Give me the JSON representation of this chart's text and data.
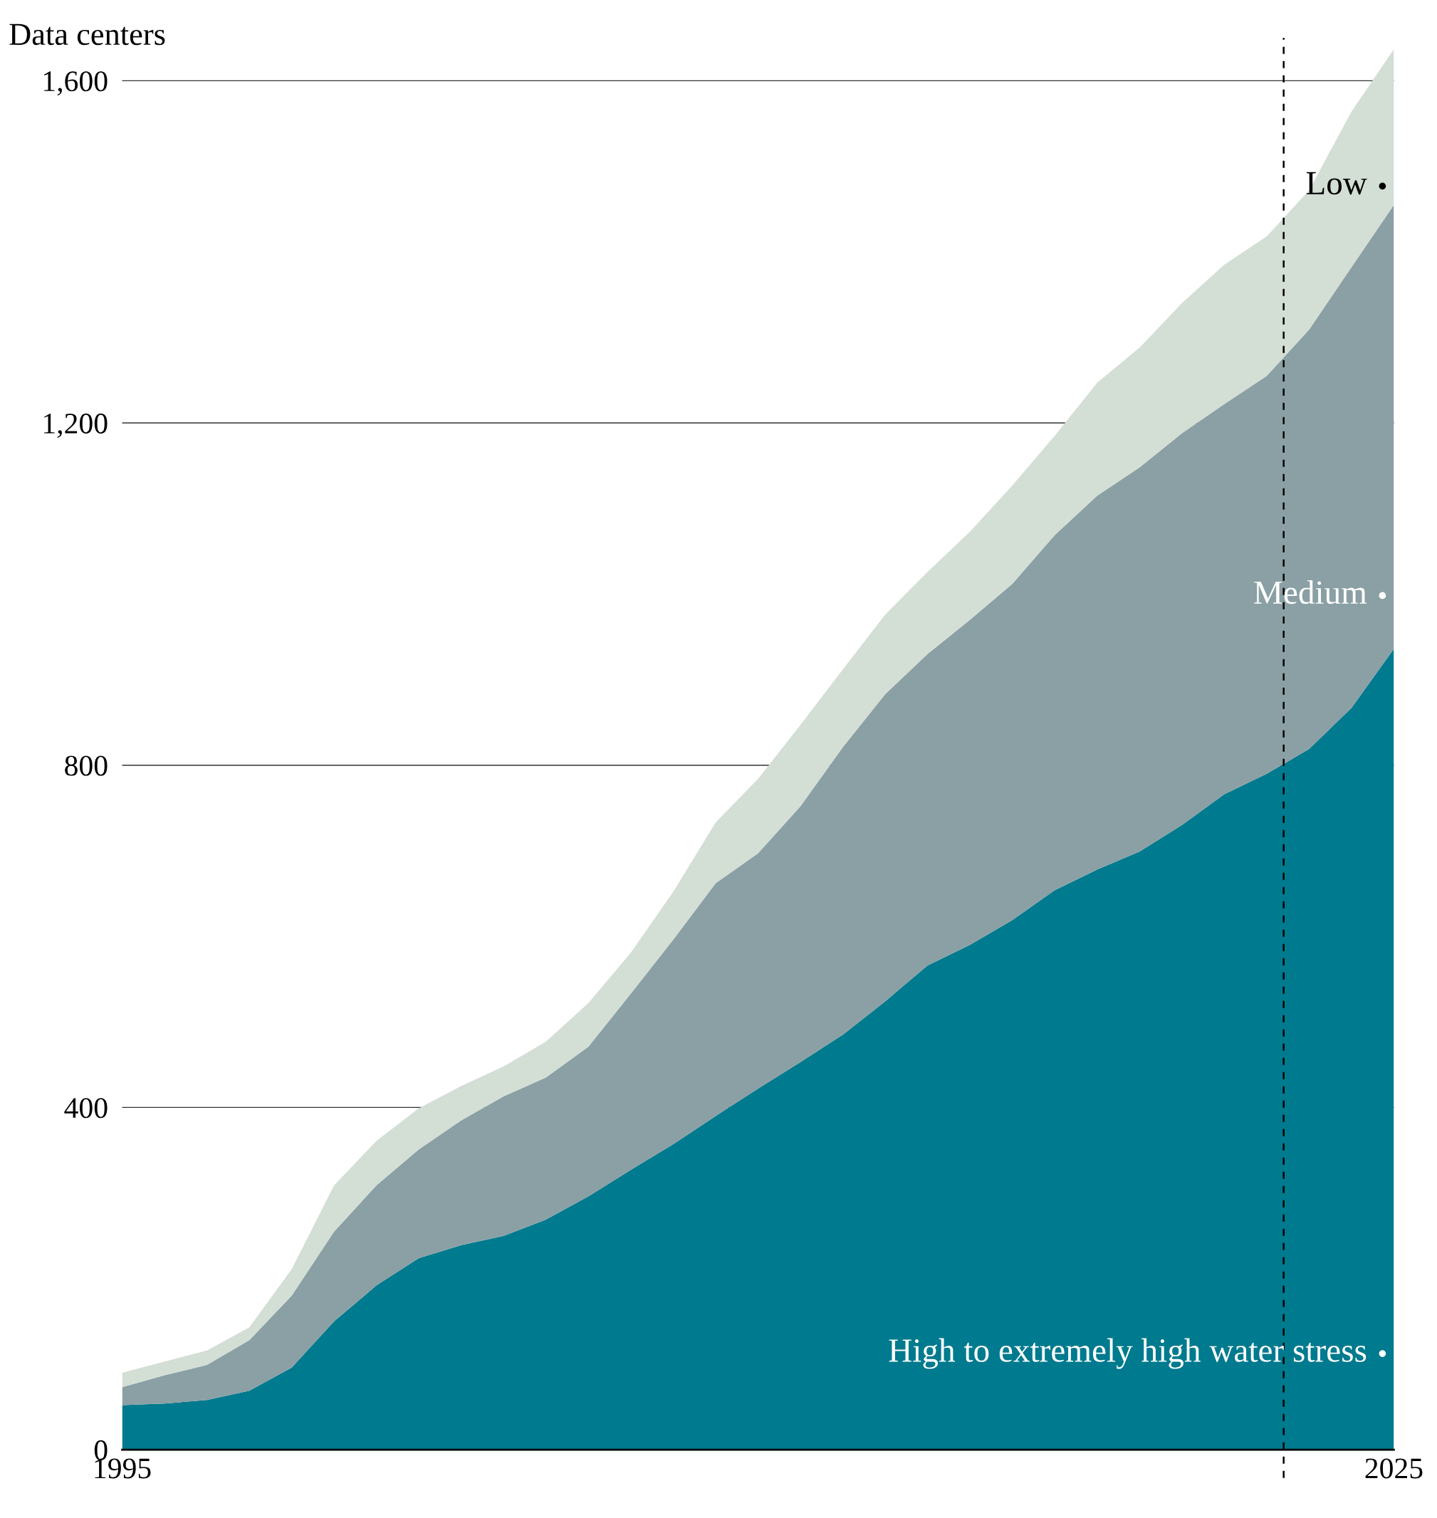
{
  "chart_data": {
    "type": "area",
    "stacked": true,
    "ylabel": "Data centers",
    "x": [
      1995,
      1996,
      1997,
      1998,
      1999,
      2000,
      2001,
      2002,
      2003,
      2004,
      2005,
      2006,
      2007,
      2008,
      2009,
      2010,
      2011,
      2012,
      2013,
      2014,
      2015,
      2016,
      2017,
      2018,
      2019,
      2020,
      2021,
      2022,
      2023,
      2024,
      2025
    ],
    "series": [
      {
        "name": "High to extremely high water stress",
        "color": "#007a8e",
        "values": [
          52,
          54,
          58,
          69,
          96,
          150,
          192,
          224,
          239,
          250,
          269,
          296,
          327,
          357,
          390,
          422,
          453,
          485,
          524,
          566,
          590,
          619,
          654,
          678,
          699,
          730,
          766,
          790,
          819,
          867,
          936
        ]
      },
      {
        "name": "Medium",
        "color": "#8ba0a5",
        "values": [
          21,
          33,
          41,
          59,
          84,
          105,
          117,
          127,
          146,
          163,
          166,
          175,
          206,
          239,
          272,
          275,
          299,
          336,
          359,
          364,
          380,
          393,
          415,
          437,
          449,
          458,
          456,
          465,
          490,
          515,
          519
        ]
      },
      {
        "name": "Low",
        "color": "#d3ded5",
        "values": [
          17,
          16,
          17,
          15,
          31,
          54,
          52,
          48,
          40,
          35,
          42,
          51,
          48,
          56,
          71,
          87,
          95,
          91,
          93,
          96,
          103,
          115,
          116,
          132,
          140,
          152,
          163,
          163,
          163,
          182,
          182
        ]
      }
    ],
    "xlim": [
      1995,
      2025
    ],
    "xticks": [
      1995,
      2025
    ],
    "ylim": [
      0,
      1650
    ],
    "yticks": [
      {
        "value": 0,
        "label": "0"
      },
      {
        "value": 400,
        "label": "400"
      },
      {
        "value": 800,
        "label": "800"
      },
      {
        "value": 1200,
        "label": "1,200"
      },
      {
        "value": 1600,
        "label": "1,600"
      }
    ],
    "grid": "y",
    "ref_lines": [
      {
        "axis": "x",
        "value": 2022.4,
        "color": "#000000",
        "line_style": "dashed"
      }
    ]
  }
}
